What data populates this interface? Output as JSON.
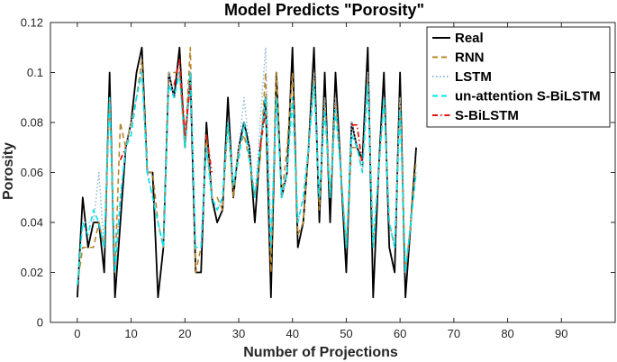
{
  "chart_data": {
    "type": "line",
    "title": "Model Predicts \"Porosity\"",
    "xlabel": "Number of Projections",
    "ylabel": "Porosity",
    "xlim": [
      -5,
      100
    ],
    "ylim": [
      0,
      0.12
    ],
    "xticks": [
      0,
      10,
      20,
      30,
      40,
      50,
      60,
      70,
      80,
      90
    ],
    "xtick_labels": [
      "0",
      "10",
      "20",
      "30",
      "40",
      "50",
      "60",
      "70",
      "80",
      "90"
    ],
    "yticks": [
      0,
      0.02,
      0.04,
      0.06,
      0.08,
      0.1,
      0.12
    ],
    "ytick_labels": [
      "0",
      "0.02",
      "0.04",
      "0.06",
      "0.08",
      "0.1",
      "0.12"
    ],
    "grid": false,
    "legend_position": "top-right",
    "x": [
      0,
      1,
      2,
      3,
      4,
      5,
      6,
      7,
      8,
      9,
      10,
      11,
      12,
      13,
      14,
      15,
      16,
      17,
      18,
      19,
      20,
      21,
      22,
      23,
      24,
      25,
      26,
      27,
      28,
      29,
      30,
      31,
      32,
      33,
      34,
      35,
      36,
      37,
      38,
      39,
      40,
      41,
      42,
      43,
      44,
      45,
      46,
      47,
      48,
      49,
      50,
      51,
      52,
      53,
      54,
      55,
      56,
      57,
      58,
      59,
      60,
      61,
      62,
      63
    ],
    "series": [
      {
        "name": "Real",
        "color": "#000000",
        "style": "solid",
        "values": [
          0.01,
          0.05,
          0.03,
          0.04,
          0.04,
          0.02,
          0.1,
          0.01,
          0.04,
          0.07,
          0.08,
          0.1,
          0.11,
          0.06,
          0.06,
          0.01,
          0.03,
          0.1,
          0.09,
          0.11,
          0.07,
          0.1,
          0.02,
          0.02,
          0.08,
          0.05,
          0.04,
          0.045,
          0.09,
          0.05,
          0.07,
          0.08,
          0.07,
          0.04,
          0.07,
          0.09,
          0.01,
          0.1,
          0.05,
          0.06,
          0.11,
          0.03,
          0.04,
          0.07,
          0.11,
          0.04,
          0.1,
          0.04,
          0.1,
          0.06,
          0.02,
          0.08,
          0.07,
          0.065,
          0.11,
          0.01,
          0.06,
          0.1,
          0.03,
          0.02,
          0.1,
          0.01,
          0.04,
          0.07
        ]
      },
      {
        "name": "RNN",
        "color": "#b8862a",
        "style": "dashed",
        "values": [
          0.015,
          0.03,
          0.03,
          0.03,
          0.04,
          0.03,
          0.09,
          0.02,
          0.08,
          0.07,
          0.08,
          0.09,
          0.105,
          0.06,
          0.06,
          0.04,
          0.03,
          0.1,
          0.1,
          0.1,
          0.07,
          0.11,
          0.02,
          0.03,
          0.075,
          0.05,
          0.05,
          0.045,
          0.08,
          0.05,
          0.07,
          0.075,
          0.065,
          0.05,
          0.065,
          0.1,
          0.02,
          0.1,
          0.05,
          0.07,
          0.1,
          0.035,
          0.04,
          0.07,
          0.1,
          0.045,
          0.09,
          0.05,
          0.09,
          0.06,
          0.03,
          0.07,
          0.07,
          0.06,
          0.1,
          0.03,
          0.06,
          0.09,
          0.04,
          0.03,
          0.09,
          0.02,
          0.04,
          0.065
        ]
      },
      {
        "name": "LSTM",
        "color": "#8fb8de",
        "style": "dotted",
        "values": [
          0.015,
          0.04,
          0.04,
          0.04,
          0.06,
          0.03,
          0.09,
          0.02,
          0.05,
          0.07,
          0.08,
          0.09,
          0.1,
          0.06,
          0.05,
          0.04,
          0.03,
          0.1,
          0.09,
          0.1,
          0.07,
          0.1,
          0.03,
          0.03,
          0.07,
          0.05,
          0.045,
          0.05,
          0.08,
          0.055,
          0.07,
          0.09,
          0.07,
          0.05,
          0.08,
          0.11,
          0.03,
          0.09,
          0.05,
          0.06,
          0.09,
          0.04,
          0.05,
          0.07,
          0.1,
          0.05,
          0.09,
          0.05,
          0.09,
          0.06,
          0.03,
          0.08,
          0.07,
          0.06,
          0.1,
          0.03,
          0.06,
          0.09,
          0.04,
          0.03,
          0.09,
          0.02,
          0.04,
          0.06
        ]
      },
      {
        "name": "un-attention S-BiLSTM",
        "color": "#00e5ee",
        "style": "dashed",
        "values": [
          0.015,
          0.04,
          0.035,
          0.045,
          0.04,
          0.03,
          0.09,
          0.02,
          0.05,
          0.07,
          0.075,
          0.09,
          0.1,
          0.06,
          0.05,
          0.04,
          0.03,
          0.095,
          0.09,
          0.1,
          0.07,
          0.1,
          0.03,
          0.03,
          0.07,
          0.05,
          0.045,
          0.05,
          0.08,
          0.055,
          0.065,
          0.08,
          0.065,
          0.05,
          0.07,
          0.09,
          0.03,
          0.09,
          0.05,
          0.06,
          0.09,
          0.04,
          0.05,
          0.07,
          0.095,
          0.05,
          0.085,
          0.05,
          0.085,
          0.06,
          0.03,
          0.075,
          0.07,
          0.06,
          0.095,
          0.03,
          0.06,
          0.09,
          0.04,
          0.03,
          0.085,
          0.02,
          0.04,
          0.06
        ]
      },
      {
        "name": "S-BiLSTM",
        "color": "#e8130f",
        "style": "dashdot",
        "values": [
          null,
          null,
          null,
          null,
          null,
          null,
          null,
          null,
          0.065,
          0.07,
          null,
          null,
          null,
          null,
          null,
          null,
          null,
          null,
          0.095,
          0.105,
          0.075,
          0.095,
          null,
          null,
          0.075,
          0.06,
          null,
          null,
          null,
          null,
          null,
          null,
          null,
          null,
          0.07,
          0.085,
          null,
          null,
          null,
          null,
          null,
          null,
          null,
          null,
          null,
          null,
          null,
          null,
          null,
          null,
          null,
          0.079,
          0.079,
          0.063,
          null,
          null,
          null,
          null,
          null,
          null,
          null,
          null,
          null,
          null
        ]
      }
    ]
  }
}
